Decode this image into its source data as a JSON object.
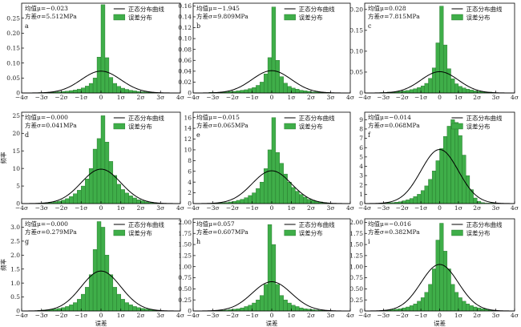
{
  "legend": {
    "curve_label": "正态分布曲线",
    "hist_label": "误差分布"
  },
  "colors": {
    "bar": "#3fae49",
    "bar_edge": "#1f6e25",
    "curve": "#000000"
  },
  "chart_data": [
    {
      "type": "bar",
      "panel_label": "a",
      "stats_mean": "均值μ=−0.023",
      "stats_var": "方差σ=5.512MPa",
      "x_ticks": [
        "−4σ",
        "−3σ",
        "−2σ",
        "−1σ",
        "0",
        "1σ",
        "2σ",
        "3σ",
        "4σ"
      ],
      "xlim": [
        -4,
        4
      ],
      "ylim": [
        0,
        0.3
      ],
      "y_ticks": [
        "0",
        "0.05",
        "0.10",
        "0.15",
        "0.20",
        "0.25"
      ],
      "y_tick_values": [
        0,
        0.05,
        0.1,
        0.15,
        0.2,
        0.25
      ],
      "ylabel": "",
      "xlabel": "",
      "grid": false,
      "legend_position": "top-right",
      "bin_width": 0.2,
      "x": [
        -3.1,
        -2.9,
        -2.7,
        -2.5,
        -2.3,
        -2.1,
        -1.9,
        -1.7,
        -1.5,
        -1.3,
        -1.1,
        -0.9,
        -0.7,
        -0.5,
        -0.3,
        -0.1,
        0.1,
        0.3,
        0.5,
        0.7,
        0.9,
        1.1,
        1.3,
        1.5,
        1.7,
        1.9,
        2.1,
        2.3,
        2.5,
        2.7,
        2.9
      ],
      "values": [
        0.001,
        0.001,
        0.002,
        0.002,
        0.003,
        0.004,
        0.005,
        0.006,
        0.008,
        0.01,
        0.013,
        0.017,
        0.023,
        0.032,
        0.05,
        0.12,
        0.295,
        0.118,
        0.052,
        0.032,
        0.022,
        0.016,
        0.012,
        0.009,
        0.007,
        0.005,
        0.004,
        0.003,
        0.002,
        0.002,
        0.001
      ],
      "curve_peak": 0.073
    },
    {
      "type": "bar",
      "panel_label": "b",
      "stats_mean": "均值μ=−1.945",
      "stats_var": "方差σ=9.809MPa",
      "x_ticks": [
        "−4σ",
        "−3σ",
        "−2σ",
        "−1σ",
        "0",
        "1σ",
        "2σ",
        "3σ",
        "4σ"
      ],
      "xlim": [
        -4,
        4
      ],
      "ylim": [
        0,
        0.165
      ],
      "y_ticks": [
        "0",
        "0.02",
        "0.04",
        "0.06",
        "0.08",
        "0.10",
        "0.12",
        "0.14",
        "0.16"
      ],
      "y_tick_values": [
        0,
        0.02,
        0.04,
        0.06,
        0.08,
        0.1,
        0.12,
        0.14,
        0.16
      ],
      "ylabel": "",
      "xlabel": "",
      "grid": false,
      "legend_position": "top-right",
      "bin_width": 0.2,
      "x": [
        -3.1,
        -2.9,
        -2.7,
        -2.5,
        -2.3,
        -2.1,
        -1.9,
        -1.7,
        -1.5,
        -1.3,
        -1.1,
        -0.9,
        -0.7,
        -0.5,
        -0.3,
        -0.1,
        0.1,
        0.3,
        0.5,
        0.7,
        0.9,
        1.1,
        1.3,
        1.5,
        1.7,
        1.9,
        2.1,
        2.3,
        2.5,
        2.7,
        2.9
      ],
      "values": [
        0.001,
        0.001,
        0.001,
        0.002,
        0.002,
        0.003,
        0.003,
        0.004,
        0.005,
        0.006,
        0.008,
        0.01,
        0.014,
        0.02,
        0.035,
        0.065,
        0.158,
        0.06,
        0.03,
        0.018,
        0.012,
        0.009,
        0.007,
        0.005,
        0.004,
        0.003,
        0.002,
        0.002,
        0.001,
        0.001,
        0.001
      ],
      "curve_peak": 0.041
    },
    {
      "type": "bar",
      "panel_label": "c",
      "stats_mean": "均值μ=0.028",
      "stats_var": "方差σ=7.815MPa",
      "x_ticks": [
        "−4σ",
        "−3σ",
        "−2σ",
        "−1σ",
        "0",
        "1σ",
        "2σ",
        "3σ",
        "4σ"
      ],
      "xlim": [
        -4,
        4
      ],
      "ylim": [
        0,
        0.215
      ],
      "y_ticks": [
        "0",
        "0.05",
        "0.10",
        "0.15",
        "0.20"
      ],
      "y_tick_values": [
        0,
        0.05,
        0.1,
        0.15,
        0.2
      ],
      "ylabel": "",
      "xlabel": "",
      "grid": false,
      "legend_position": "top-right",
      "bin_width": 0.2,
      "x": [
        -3.1,
        -2.9,
        -2.7,
        -2.5,
        -2.3,
        -2.1,
        -1.9,
        -1.7,
        -1.5,
        -1.3,
        -1.1,
        -0.9,
        -0.7,
        -0.5,
        -0.3,
        -0.1,
        0.1,
        0.3,
        0.5,
        0.7,
        0.9,
        1.1,
        1.3,
        1.5,
        1.7,
        1.9,
        2.1,
        2.3,
        2.5,
        2.7,
        2.9
      ],
      "values": [
        0.001,
        0.001,
        0.002,
        0.002,
        0.003,
        0.004,
        0.005,
        0.006,
        0.008,
        0.01,
        0.013,
        0.017,
        0.023,
        0.035,
        0.06,
        0.12,
        0.208,
        0.115,
        0.058,
        0.034,
        0.022,
        0.016,
        0.012,
        0.009,
        0.007,
        0.005,
        0.004,
        0.003,
        0.002,
        0.002,
        0.001
      ],
      "curve_peak": 0.051
    },
    {
      "type": "bar",
      "panel_label": "d",
      "stats_mean": "均值μ=−0.000",
      "stats_var": "方差σ=0.041MPa",
      "x_ticks": [
        "−4σ",
        "−3σ",
        "−2σ",
        "−1σ",
        "0",
        "1σ",
        "2σ",
        "3σ",
        "4σ"
      ],
      "xlim": [
        -4,
        4
      ],
      "ylim": [
        0,
        26
      ],
      "y_ticks": [
        "0",
        "5",
        "10",
        "15",
        "20",
        "25"
      ],
      "y_tick_values": [
        0,
        5,
        10,
        15,
        20,
        25
      ],
      "ylabel": "频率",
      "xlabel": "",
      "grid": false,
      "legend_position": "top-right",
      "bin_width": 0.2,
      "x": [
        -3.1,
        -2.9,
        -2.7,
        -2.5,
        -2.3,
        -2.1,
        -1.9,
        -1.7,
        -1.5,
        -1.3,
        -1.1,
        -0.9,
        -0.7,
        -0.5,
        -0.3,
        -0.1,
        0.1,
        0.3,
        0.5,
        0.7,
        0.9,
        1.1,
        1.3,
        1.5,
        1.7,
        1.9,
        2.1,
        2.3,
        2.5,
        2.7,
        2.9
      ],
      "values": [
        0.1,
        0.2,
        0.2,
        0.3,
        0.5,
        0.7,
        1.0,
        1.4,
        2.0,
        2.8,
        3.8,
        5.0,
        7.0,
        10.0,
        15.5,
        18.5,
        25.0,
        17.5,
        12.0,
        8.0,
        5.5,
        4.0,
        3.0,
        2.2,
        1.6,
        1.1,
        0.8,
        0.5,
        0.3,
        0.2,
        0.1
      ],
      "curve_peak": 9.8
    },
    {
      "type": "bar",
      "panel_label": "e",
      "stats_mean": "均值μ=−0.015",
      "stats_var": "方差σ=0.065MPa",
      "x_ticks": [
        "−4σ",
        "−3σ",
        "−2σ",
        "−1σ",
        "0",
        "1σ",
        "2σ",
        "3σ",
        "4σ"
      ],
      "xlim": [
        -4,
        4
      ],
      "ylim": [
        0,
        17
      ],
      "y_ticks": [
        "0",
        "2",
        "4",
        "6",
        "8",
        "10",
        "12",
        "14",
        "16"
      ],
      "y_tick_values": [
        0,
        2,
        4,
        6,
        8,
        10,
        12,
        14,
        16
      ],
      "ylabel": "",
      "xlabel": "",
      "grid": false,
      "legend_position": "top-right",
      "bin_width": 0.2,
      "x": [
        -3.1,
        -2.9,
        -2.7,
        -2.5,
        -2.3,
        -2.1,
        -1.9,
        -1.7,
        -1.5,
        -1.3,
        -1.1,
        -0.9,
        -0.7,
        -0.5,
        -0.3,
        -0.1,
        0.1,
        0.3,
        0.5,
        0.7,
        0.9,
        1.1,
        1.3,
        1.5,
        1.7,
        1.9,
        2.1,
        2.3,
        2.5,
        2.7,
        2.9
      ],
      "values": [
        0.05,
        0.1,
        0.1,
        0.15,
        0.2,
        0.3,
        0.4,
        0.6,
        0.8,
        1.1,
        1.5,
        2.0,
        2.8,
        4.0,
        6.5,
        10.0,
        16.0,
        9.5,
        7.5,
        5.5,
        4.0,
        3.0,
        2.3,
        1.7,
        1.2,
        0.8,
        0.6,
        0.4,
        0.3,
        0.2,
        0.1
      ],
      "curve_peak": 6.1
    },
    {
      "type": "bar",
      "panel_label": "f",
      "stats_mean": "均值μ=−0.014",
      "stats_var": "方差σ=0.068MPa",
      "x_ticks": [
        "−4σ",
        "−3σ",
        "−2σ",
        "−1σ",
        "0",
        "1σ",
        "2σ",
        "3σ",
        "4σ"
      ],
      "xlim": [
        -4,
        4
      ],
      "ylim": [
        0,
        9.8
      ],
      "y_ticks": [
        "0",
        "1",
        "2",
        "3",
        "4",
        "5",
        "6",
        "7",
        "8",
        "9"
      ],
      "y_tick_values": [
        0,
        1,
        2,
        3,
        4,
        5,
        6,
        7,
        8,
        9
      ],
      "ylabel": "",
      "xlabel": "",
      "grid": false,
      "legend_position": "top-right",
      "bin_width": 0.2,
      "x": [
        -3.1,
        -2.9,
        -2.7,
        -2.5,
        -2.3,
        -2.1,
        -1.9,
        -1.7,
        -1.5,
        -1.3,
        -1.1,
        -0.9,
        -0.7,
        -0.5,
        -0.3,
        -0.1,
        0.1,
        0.3,
        0.5,
        0.7,
        0.9,
        1.1,
        1.3,
        1.5,
        1.7,
        1.9,
        2.1,
        2.3,
        2.5,
        2.7,
        2.9
      ],
      "values": [
        0.05,
        0.05,
        0.1,
        0.1,
        0.15,
        0.2,
        0.3,
        0.4,
        0.55,
        0.75,
        1.0,
        1.4,
        1.9,
        2.6,
        3.5,
        4.6,
        5.9,
        7.2,
        8.3,
        9.0,
        8.7,
        7.3,
        5.2,
        3.0,
        1.5,
        0.6,
        0.25,
        0.1,
        0.05,
        0.05,
        0.05
      ],
      "curve_peak": 5.8
    },
    {
      "type": "bar",
      "panel_label": "g",
      "stats_mean": "均值μ=−0.000",
      "stats_var": "方差σ=0.279MPa",
      "x_ticks": [
        "−4σ",
        "−3σ",
        "−2σ",
        "−1σ",
        "0",
        "1σ",
        "2σ",
        "3σ",
        "4σ"
      ],
      "xlim": [
        -4,
        4
      ],
      "ylim": [
        0,
        3.3
      ],
      "y_ticks": [
        "0",
        "0.5",
        "1.0",
        "1.5",
        "2.0",
        "2.5",
        "3.0"
      ],
      "y_tick_values": [
        0,
        0.5,
        1.0,
        1.5,
        2.0,
        2.5,
        3.0
      ],
      "ylabel": "频率",
      "xlabel": "误差",
      "grid": false,
      "legend_position": "top-right",
      "bin_width": 0.2,
      "x": [
        -3.1,
        -2.9,
        -2.7,
        -2.5,
        -2.3,
        -2.1,
        -1.9,
        -1.7,
        -1.5,
        -1.3,
        -1.1,
        -0.9,
        -0.7,
        -0.5,
        -0.3,
        -0.1,
        0.1,
        0.3,
        0.5,
        0.7,
        0.9,
        1.1,
        1.3,
        1.5,
        1.7,
        1.9,
        2.1,
        2.3,
        2.5,
        2.7,
        2.9
      ],
      "values": [
        0.02,
        0.03,
        0.04,
        0.05,
        0.07,
        0.09,
        0.12,
        0.16,
        0.22,
        0.3,
        0.42,
        0.6,
        0.85,
        1.3,
        2.2,
        3.2,
        3.0,
        2.0,
        1.3,
        0.85,
        0.6,
        0.42,
        0.3,
        0.22,
        0.16,
        0.12,
        0.09,
        0.07,
        0.05,
        0.03,
        0.02
      ],
      "curve_peak": 1.43
    },
    {
      "type": "bar",
      "panel_label": "h",
      "stats_mean": "均值μ=0.057",
      "stats_var": "方差σ=0.607MPa",
      "x_ticks": [
        "−4σ",
        "−3σ",
        "−2σ",
        "−1σ",
        "0",
        "1σ",
        "2σ",
        "3σ",
        "4σ"
      ],
      "xlim": [
        -4,
        4
      ],
      "ylim": [
        0,
        2.08
      ],
      "y_ticks": [
        "0",
        "0.25",
        "0.50",
        "0.75",
        "1.00",
        "1.25",
        "1.50",
        "1.75",
        "2.00"
      ],
      "y_tick_values": [
        0,
        0.25,
        0.5,
        0.75,
        1.0,
        1.25,
        1.5,
        1.75,
        2.0
      ],
      "ylabel": "",
      "xlabel": "误差",
      "grid": false,
      "legend_position": "top-right",
      "bin_width": 0.2,
      "x": [
        -3.1,
        -2.9,
        -2.7,
        -2.5,
        -2.3,
        -2.1,
        -1.9,
        -1.7,
        -1.5,
        -1.3,
        -1.1,
        -0.9,
        -0.7,
        -0.5,
        -0.3,
        -0.1,
        0.1,
        0.3,
        0.5,
        0.7,
        0.9,
        1.1,
        1.3,
        1.5,
        1.7,
        1.9,
        2.1,
        2.3,
        2.5,
        2.7,
        2.9
      ],
      "values": [
        0.005,
        0.008,
        0.01,
        0.015,
        0.02,
        0.03,
        0.04,
        0.05,
        0.07,
        0.1,
        0.13,
        0.18,
        0.25,
        0.35,
        0.6,
        1.95,
        1.5,
        0.6,
        0.35,
        0.25,
        0.18,
        0.13,
        0.1,
        0.07,
        0.05,
        0.04,
        0.03,
        0.02,
        0.015,
        0.01,
        0.005
      ],
      "curve_peak": 0.66
    },
    {
      "type": "bar",
      "panel_label": "i",
      "stats_mean": "均值μ=−0.016",
      "stats_var": "方差σ=0.382MPa",
      "x_ticks": [
        "−4σ",
        "−3σ",
        "−2σ",
        "−1σ",
        "0",
        "1σ",
        "2σ",
        "3σ",
        "4σ"
      ],
      "xlim": [
        -4,
        4
      ],
      "ylim": [
        0,
        2.08
      ],
      "y_ticks": [
        "0",
        "0.25",
        "0.50",
        "0.75",
        "1.00",
        "1.25",
        "1.50",
        "1.75",
        "2.00"
      ],
      "y_tick_values": [
        0,
        0.25,
        0.5,
        0.75,
        1.0,
        1.25,
        1.5,
        1.75,
        2.0
      ],
      "ylabel": "",
      "xlabel": "误差",
      "grid": false,
      "legend_position": "top-right",
      "bin_width": 0.2,
      "x": [
        -3.1,
        -2.9,
        -2.7,
        -2.5,
        -2.3,
        -2.1,
        -1.9,
        -1.7,
        -1.5,
        -1.3,
        -1.1,
        -0.9,
        -0.7,
        -0.5,
        -0.3,
        -0.1,
        0.1,
        0.3,
        0.5,
        0.7,
        0.9,
        1.1,
        1.3,
        1.5,
        1.7,
        1.9,
        2.1,
        2.3,
        2.5,
        2.7,
        2.9
      ],
      "values": [
        0.01,
        0.015,
        0.02,
        0.03,
        0.04,
        0.05,
        0.07,
        0.09,
        0.12,
        0.16,
        0.22,
        0.3,
        0.42,
        0.6,
        0.95,
        1.6,
        1.98,
        1.35,
        0.95,
        0.6,
        0.42,
        0.3,
        0.22,
        0.16,
        0.12,
        0.09,
        0.07,
        0.05,
        0.04,
        0.02,
        0.01
      ],
      "curve_peak": 1.05
    }
  ]
}
